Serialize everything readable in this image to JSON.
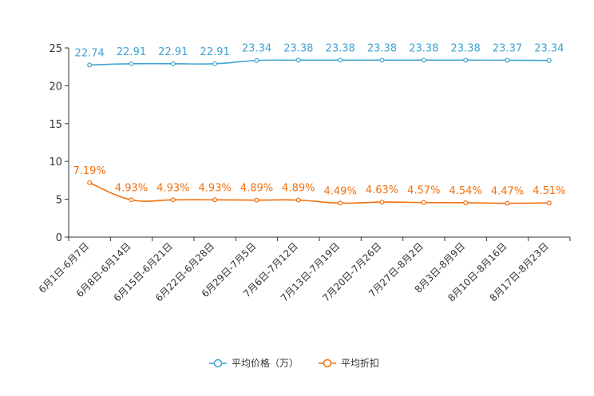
{
  "chart_data": {
    "type": "line",
    "title": "",
    "xlabel": "",
    "ylabel": "",
    "ylim": [
      0,
      25
    ],
    "yticks": [
      0,
      5,
      10,
      15,
      20,
      25
    ],
    "categories": [
      "6月1日-6月7日",
      "6月8日-6月14日",
      "6月15日-6月21日",
      "6月22日-6月28日",
      "6月29日-7月5日",
      "7月6日-7月12日",
      "7月13日-7月19日",
      "7月20日-7月26日",
      "7月27日-8月2日",
      "8月3日-8月9日",
      "8月10日-8月16日",
      "8月17日-8月23日"
    ],
    "series": [
      {
        "name": "平均价格（万）",
        "color": "#3fa3d3",
        "values": [
          22.74,
          22.91,
          22.91,
          22.91,
          23.34,
          23.38,
          23.38,
          23.38,
          23.38,
          23.38,
          23.37,
          23.34
        ],
        "labels": [
          "22.74",
          "22.91",
          "22.91",
          "22.91",
          "23.34",
          "23.38",
          "23.38",
          "23.38",
          "23.38",
          "23.38",
          "23.37",
          "23.34"
        ]
      },
      {
        "name": "平均折扣",
        "color": "#f36f0d",
        "values": [
          7.19,
          4.93,
          4.93,
          4.93,
          4.89,
          4.89,
          4.49,
          4.63,
          4.57,
          4.54,
          4.47,
          4.51
        ],
        "labels": [
          "7.19%",
          "4.93%",
          "4.93%",
          "4.93%",
          "4.89%",
          "4.89%",
          "4.49%",
          "4.63%",
          "4.57%",
          "4.54%",
          "4.47%",
          "4.51%"
        ]
      }
    ],
    "legend_position": "bottom-center",
    "grid": false
  }
}
